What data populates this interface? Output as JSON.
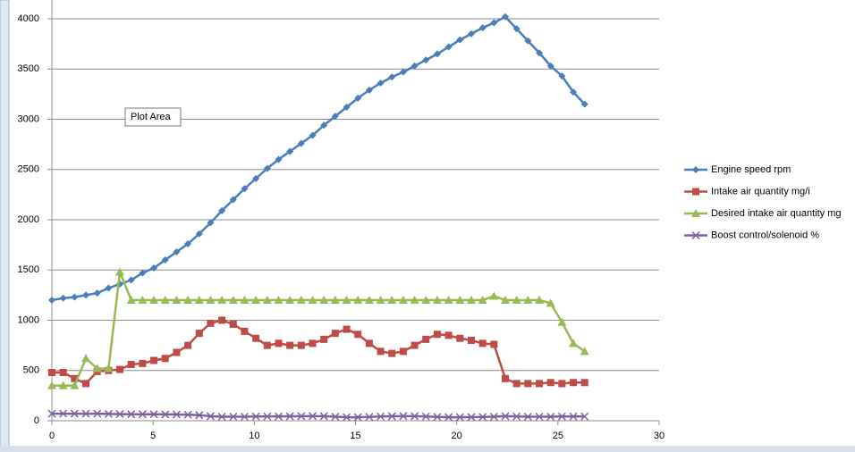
{
  "chart_data": {
    "type": "line",
    "tooltip": "Plot Area",
    "x": [
      0,
      0.56,
      1.12,
      1.68,
      2.24,
      2.8,
      3.36,
      3.92,
      4.48,
      5.04,
      5.6,
      6.16,
      6.72,
      7.28,
      7.84,
      8.4,
      8.96,
      9.52,
      10.08,
      10.64,
      11.2,
      11.76,
      12.32,
      12.88,
      13.44,
      14,
      14.56,
      15.12,
      15.68,
      16.24,
      16.8,
      17.36,
      17.92,
      18.48,
      19.04,
      19.6,
      20.16,
      20.72,
      21.28,
      21.84,
      22.4,
      22.96,
      23.52,
      24.08,
      24.64,
      25.2,
      25.76,
      26.32
    ],
    "series": [
      {
        "name": "Engine speed rpm",
        "color": "#4a7ebb",
        "marker": "diamond",
        "values": [
          1200,
          1220,
          1230,
          1250,
          1270,
          1320,
          1360,
          1400,
          1470,
          1520,
          1600,
          1680,
          1760,
          1860,
          1970,
          2090,
          2200,
          2310,
          2410,
          2510,
          2600,
          2680,
          2760,
          2840,
          2940,
          3030,
          3120,
          3210,
          3290,
          3360,
          3420,
          3470,
          3530,
          3590,
          3650,
          3720,
          3790,
          3850,
          3910,
          3960,
          4020,
          3900,
          3780,
          3660,
          3530,
          3430,
          3270,
          3150
        ]
      },
      {
        "name": "Intake air quantity mg/i",
        "color": "#be4b48",
        "marker": "square",
        "values": [
          480,
          480,
          420,
          370,
          490,
          500,
          510,
          560,
          570,
          600,
          620,
          680,
          750,
          870,
          970,
          1000,
          960,
          890,
          820,
          750,
          770,
          750,
          750,
          770,
          810,
          870,
          910,
          860,
          770,
          690,
          670,
          690,
          750,
          810,
          860,
          850,
          820,
          800,
          770,
          760,
          420,
          370,
          370,
          370,
          380,
          370,
          380,
          380
        ]
      },
      {
        "name": "Desired intake air quantity  mg",
        "color": "#98b954",
        "marker": "triangle",
        "values": [
          350,
          350,
          350,
          620,
          520,
          520,
          1480,
          1200,
          1200,
          1200,
          1200,
          1200,
          1200,
          1200,
          1200,
          1200,
          1200,
          1200,
          1200,
          1200,
          1200,
          1200,
          1200,
          1200,
          1200,
          1200,
          1200,
          1200,
          1200,
          1200,
          1200,
          1200,
          1200,
          1200,
          1200,
          1200,
          1200,
          1200,
          1200,
          1240,
          1200,
          1200,
          1200,
          1200,
          1170,
          980,
          770,
          690
        ]
      },
      {
        "name": "Boost control/solenoid %",
        "color": "#7d60a0",
        "marker": "x",
        "values": [
          70,
          70,
          70,
          70,
          70,
          68,
          66,
          65,
          65,
          64,
          63,
          62,
          60,
          55,
          45,
          40,
          40,
          40,
          42,
          42,
          43,
          44,
          45,
          46,
          45,
          40,
          35,
          35,
          38,
          42,
          44,
          46,
          45,
          42,
          38,
          35,
          35,
          36,
          38,
          40,
          45,
          42,
          40,
          40,
          40,
          42,
          42,
          42
        ]
      }
    ],
    "xlim": [
      0,
      30
    ],
    "xticks": [
      0,
      5,
      10,
      15,
      20,
      25,
      30
    ],
    "ylim": [
      0,
      4000
    ],
    "yticks": [
      0,
      500,
      1000,
      1500,
      2000,
      2500,
      3000,
      3500,
      4000
    ],
    "grid": true,
    "legend": "right"
  }
}
